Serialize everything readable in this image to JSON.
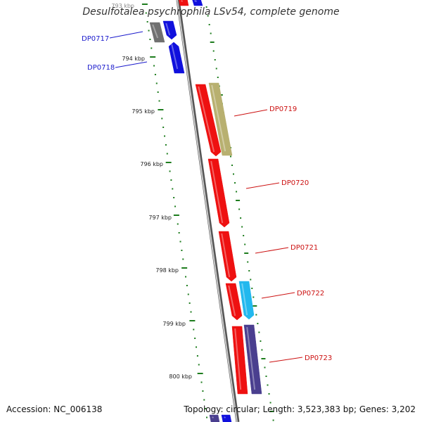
{
  "title": "Desulfotalea psychrophila LSv54, complete genome",
  "accession": "Accession: NC_006138",
  "summary": "Topology: circular; Length: 3,523,383 bp; Genes: 3,202",
  "colors": {
    "backbone": "#8a8a8a",
    "tick": "#1e7d1e",
    "label_blue": "#1a1acc",
    "label_red": "#cc1111",
    "red_gene": "#ee1111",
    "blue_gene": "#1010dd",
    "olive_gene": "#b8b070",
    "cyan_gene": "#22b8ee",
    "navy_gene": "#4a3f8f",
    "gray_gene": "#707070"
  },
  "scale_labels": [
    "793 kbp",
    "794 kbp",
    "795 kbp",
    "796 kbp",
    "797 kbp",
    "798 kbp",
    "799 kbp",
    "800 kbp"
  ],
  "gene_labels": [
    {
      "id": "dp0717",
      "text": "DP0717",
      "color": "blue"
    },
    {
      "id": "dp0718",
      "text": "DP0718",
      "color": "blue"
    },
    {
      "id": "dp0719",
      "text": "DP0719",
      "color": "red"
    },
    {
      "id": "dp0720",
      "text": "DP0720",
      "color": "red"
    },
    {
      "id": "dp0721",
      "text": "DP0721",
      "color": "red"
    },
    {
      "id": "dp0722",
      "text": "DP0722",
      "color": "red"
    },
    {
      "id": "dp0723",
      "text": "DP0723",
      "color": "red"
    }
  ]
}
